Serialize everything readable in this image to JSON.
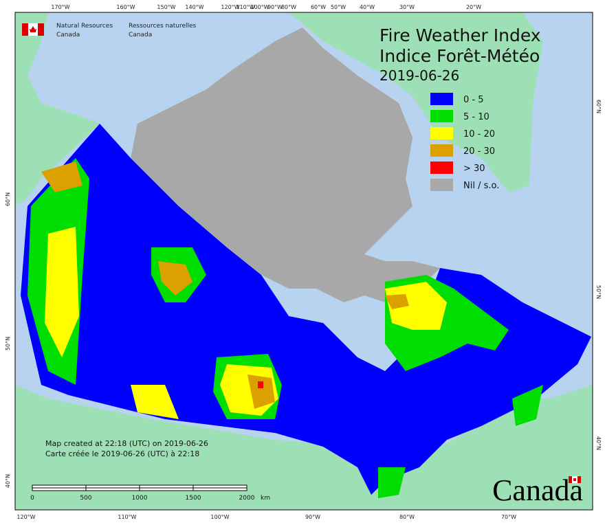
{
  "header": {
    "org_en": [
      "Natural Resources",
      "Canada"
    ],
    "org_fr": [
      "Ressources naturelles",
      "Canada"
    ]
  },
  "title": {
    "lines": [
      "Fire Weather Index",
      "Indice Forêt-Météo"
    ],
    "date": "2019-06-26"
  },
  "legend": [
    {
      "label": "0 - 5",
      "color": "#0000ff"
    },
    {
      "label": "5 - 10",
      "color": "#00dd00"
    },
    {
      "label": "10 - 20",
      "color": "#ffff00"
    },
    {
      "label": "20 - 30",
      "color": "#dca000"
    },
    {
      "label": "> 30",
      "color": "#ff0000"
    },
    {
      "label": "Nil / s.o.",
      "color": "#a8a8a8"
    }
  ],
  "top_lon_labels": [
    "170°W",
    "160°W",
    "150°W",
    "140°W",
    "120°W",
    "110°W",
    "100°W",
    "90°W",
    "80°W",
    "60°W",
    "50°W",
    "40°W",
    "30°W",
    "20°W"
  ],
  "bottom_lon_labels": [
    "120°W",
    "110°W",
    "100°W",
    "90°W",
    "80°W",
    "70°W"
  ],
  "left_lat_labels": [
    "60°N",
    "50°N",
    "40°N"
  ],
  "right_lat_labels": [
    "60°N",
    "50°N",
    "40°N"
  ],
  "notes": [
    "Map created at 22:18 (UTC) on 2019-06-26",
    "Carte créée le 2019-06-26 (UTC) à 22:18"
  ],
  "scale": {
    "labels": [
      "0",
      "500",
      "1000",
      "1500",
      "2000"
    ],
    "unit": "km"
  },
  "wordmark": "Canada"
}
